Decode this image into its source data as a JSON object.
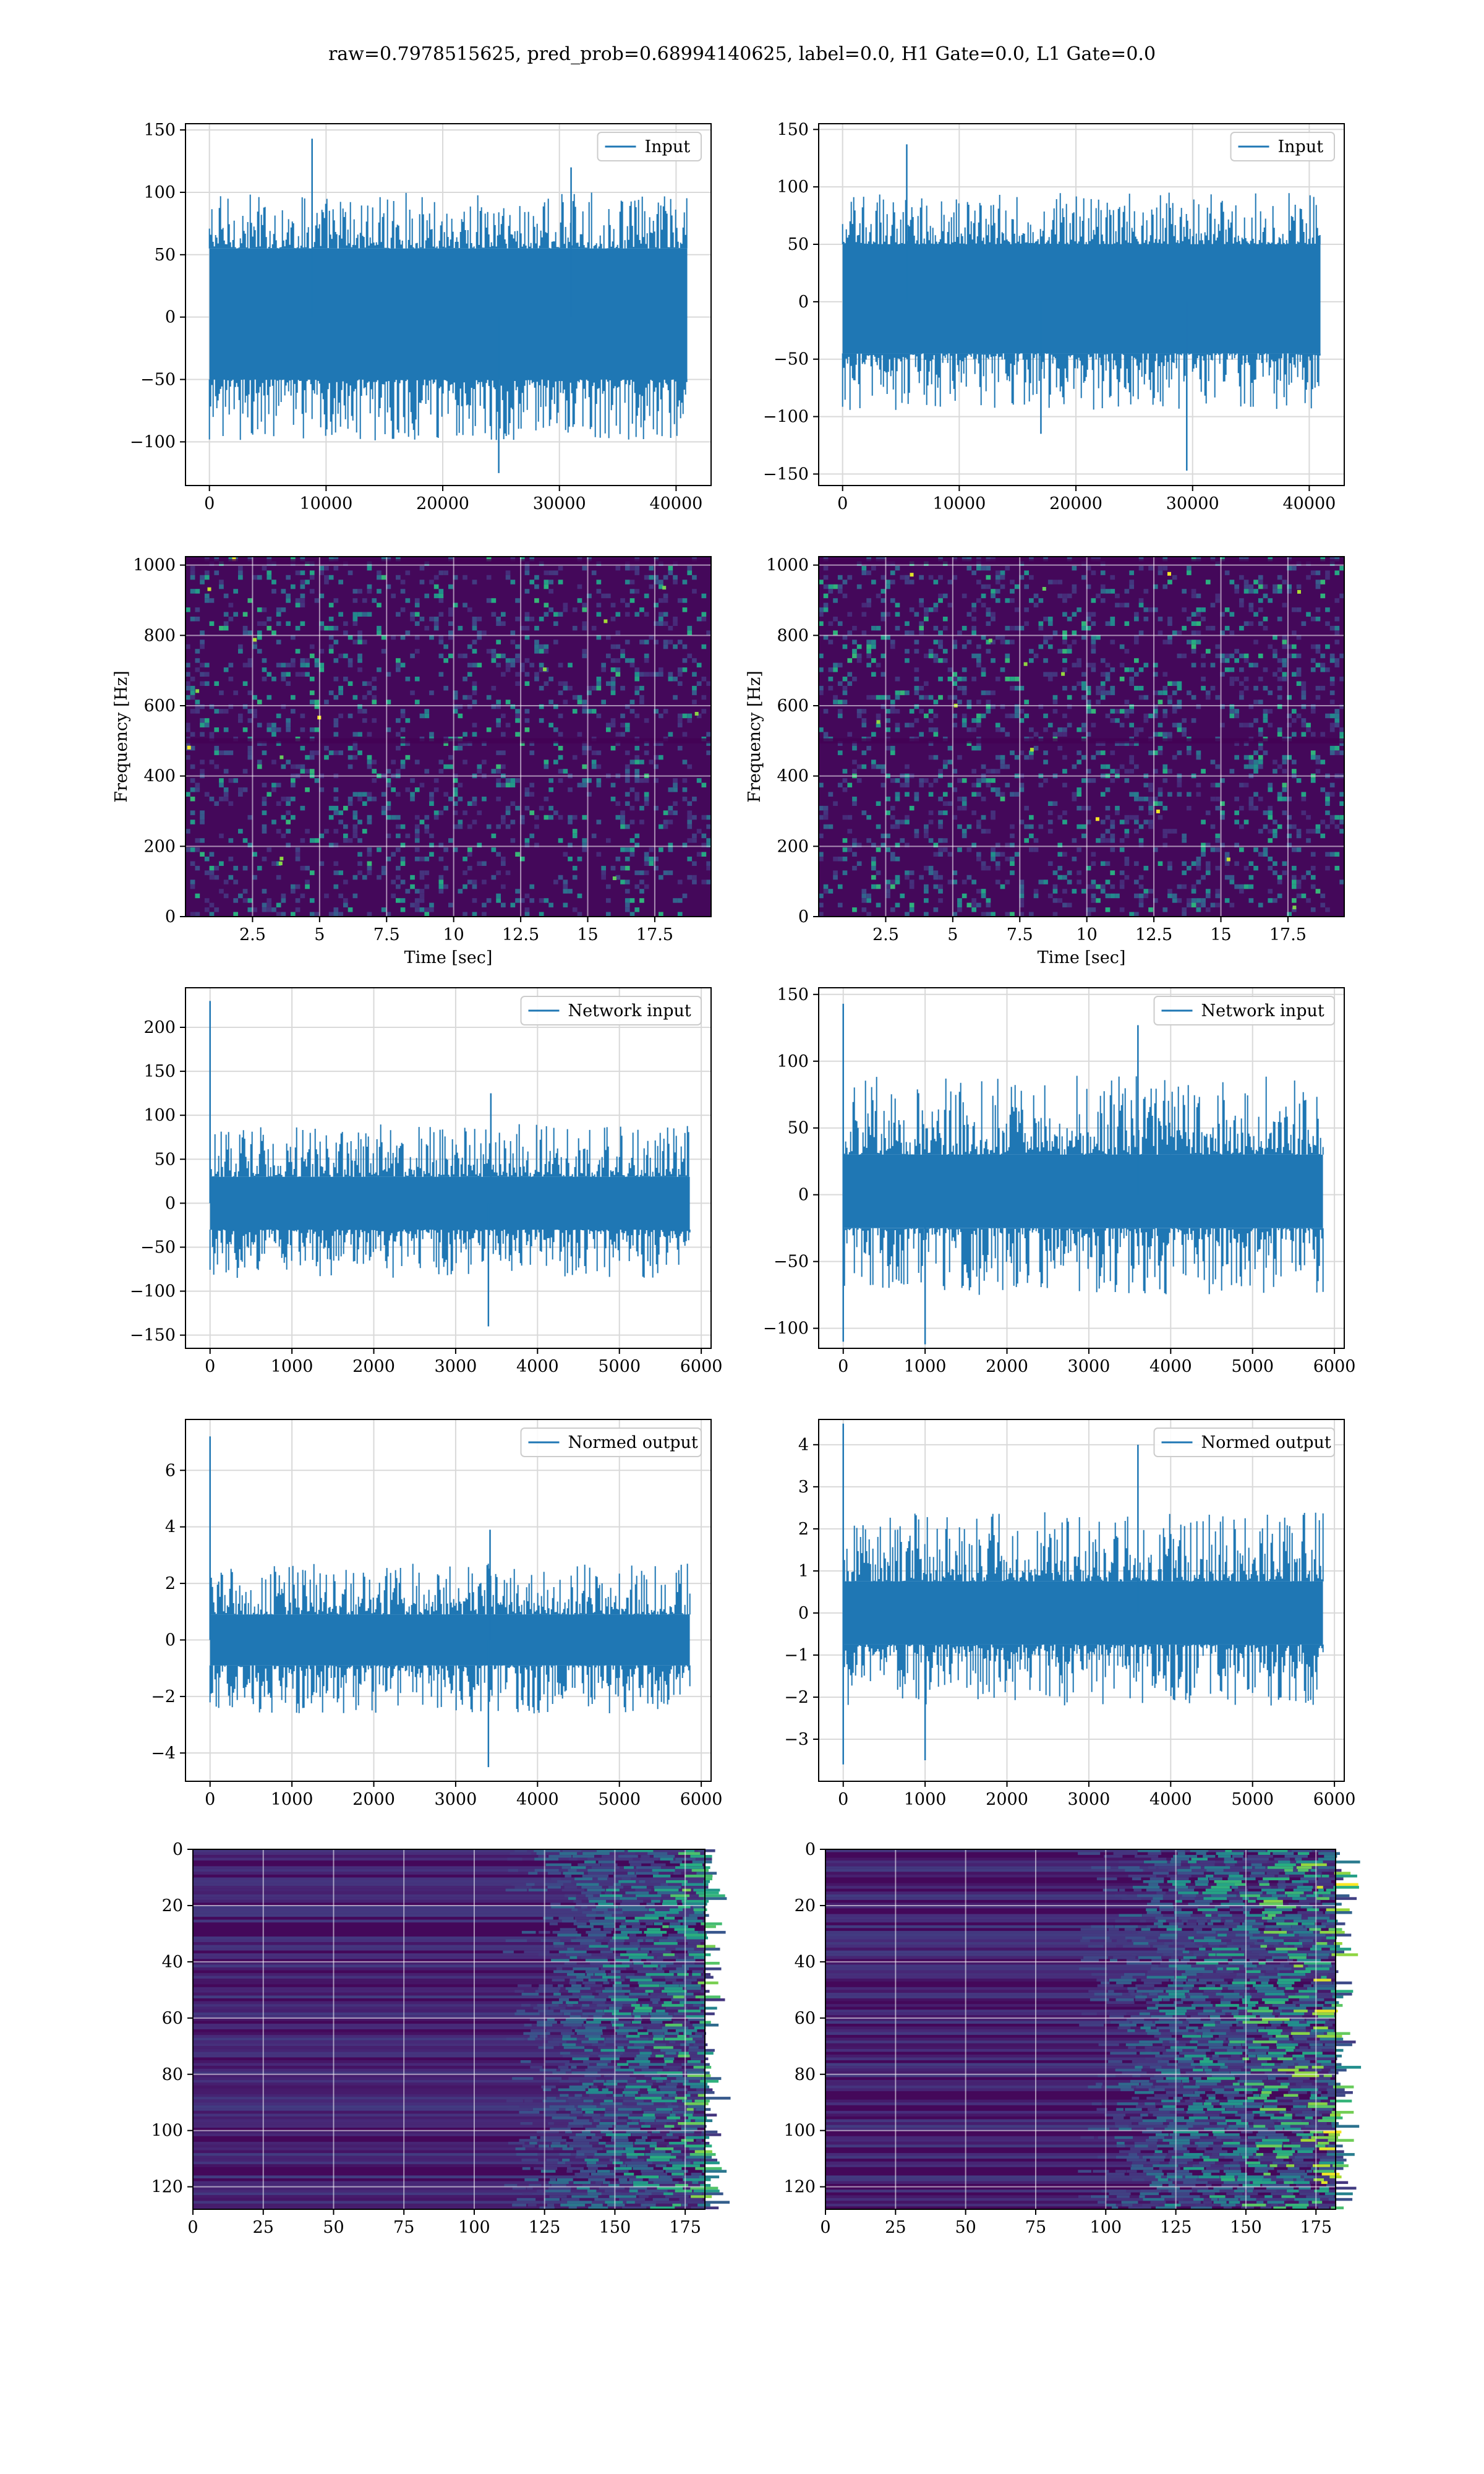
{
  "figure": {
    "title": "raw=0.7978515625, pred_prob=0.68994140625, label=0.0, H1 Gate=0.0, L1 Gate=0.0",
    "line_color": "#1f77b4"
  },
  "chart_data": [
    {
      "id": "input-h1",
      "type": "line",
      "legend": "Input",
      "xlabel": "",
      "ylabel": "",
      "xlim": [
        -2050,
        43000
      ],
      "ylim": [
        -135,
        155
      ],
      "xticks": [
        0,
        10000,
        20000,
        30000,
        40000
      ],
      "yticks": [
        -100,
        -50,
        0,
        50,
        100,
        150
      ],
      "grid": true,
      "legend_position": "top-right",
      "signal": {
        "x_start": 0,
        "x_end": 40960,
        "band": [
          -50,
          55
        ],
        "envelope": [
          -100,
          100
        ],
        "peaks": [
          {
            "x": 8800,
            "y": 143
          },
          {
            "x": 31000,
            "y": 120
          },
          {
            "x": 24800,
            "y": -125
          }
        ]
      }
    },
    {
      "id": "input-l1",
      "type": "line",
      "legend": "Input",
      "xlabel": "",
      "ylabel": "",
      "xlim": [
        -2050,
        43000
      ],
      "ylim": [
        -160,
        155
      ],
      "xticks": [
        0,
        10000,
        20000,
        30000,
        40000
      ],
      "yticks": [
        -150,
        -100,
        -50,
        0,
        50,
        100,
        150
      ],
      "grid": true,
      "legend_position": "top-right",
      "signal": {
        "x_start": 0,
        "x_end": 40960,
        "band": [
          -45,
          50
        ],
        "envelope": [
          -95,
          95
        ],
        "peaks": [
          {
            "x": 5500,
            "y": 137
          },
          {
            "x": 29500,
            "y": -147
          },
          {
            "x": 17000,
            "y": -115
          }
        ]
      }
    },
    {
      "id": "spec-h1",
      "type": "heatmap",
      "colormap": "viridis",
      "xlabel": "Time [sec]",
      "ylabel": "Frequency [Hz]",
      "xlim": [
        0,
        19.6
      ],
      "ylim": [
        0,
        1024
      ],
      "xticks": [
        2.5,
        5.0,
        7.5,
        10.0,
        12.5,
        15.0,
        17.5
      ],
      "yticks": [
        0,
        200,
        400,
        600,
        800,
        1000
      ],
      "grid": true,
      "dark_rows": [
        500,
        1010
      ],
      "density": 0.18
    },
    {
      "id": "spec-l1",
      "type": "heatmap",
      "colormap": "viridis",
      "xlabel": "Time [sec]",
      "ylabel": "Frequency [Hz]",
      "xlim": [
        0,
        19.6
      ],
      "ylim": [
        0,
        1024
      ],
      "xticks": [
        2.5,
        5.0,
        7.5,
        10.0,
        12.5,
        15.0,
        17.5
      ],
      "yticks": [
        0,
        200,
        400,
        600,
        800,
        1000
      ],
      "grid": true,
      "dark_rows": [
        500,
        1010
      ],
      "density": 0.2
    },
    {
      "id": "net-h1",
      "type": "line",
      "legend": "Network input",
      "xlabel": "",
      "ylabel": "",
      "xlim": [
        -300,
        6120
      ],
      "ylim": [
        -165,
        245
      ],
      "xticks": [
        0,
        1000,
        2000,
        3000,
        4000,
        5000,
        6000
      ],
      "yticks": [
        -150,
        -100,
        -50,
        0,
        50,
        100,
        150,
        200
      ],
      "grid": true,
      "legend_position": "top-right",
      "signal": {
        "x_start": 0,
        "x_end": 5860,
        "band": [
          -30,
          30
        ],
        "envelope": [
          -85,
          90
        ],
        "peaks": [
          {
            "x": 0,
            "y": 230
          },
          {
            "x": 3400,
            "y": -140
          },
          {
            "x": 3430,
            "y": 125
          }
        ]
      }
    },
    {
      "id": "net-l1",
      "type": "line",
      "legend": "Network input",
      "xlabel": "",
      "ylabel": "",
      "xlim": [
        -300,
        6120
      ],
      "ylim": [
        -115,
        155
      ],
      "xticks": [
        0,
        1000,
        2000,
        3000,
        4000,
        5000,
        6000
      ],
      "yticks": [
        -100,
        -50,
        0,
        50,
        100,
        150
      ],
      "grid": true,
      "legend_position": "top-right",
      "signal": {
        "x_start": 0,
        "x_end": 5860,
        "band": [
          -25,
          30
        ],
        "envelope": [
          -75,
          90
        ],
        "peaks": [
          {
            "x": 0,
            "y": 143
          },
          {
            "x": 3600,
            "y": 127
          },
          {
            "x": 0,
            "y": -110
          },
          {
            "x": 1000,
            "y": -112
          }
        ]
      }
    },
    {
      "id": "norm-h1",
      "type": "line",
      "legend": "Normed output",
      "xlabel": "",
      "ylabel": "",
      "xlim": [
        -300,
        6120
      ],
      "ylim": [
        -5.0,
        7.8
      ],
      "xticks": [
        0,
        1000,
        2000,
        3000,
        4000,
        5000,
        6000
      ],
      "yticks": [
        -4,
        -2,
        0,
        2,
        4,
        6
      ],
      "grid": true,
      "legend_position": "top-right",
      "signal": {
        "x_start": 0,
        "x_end": 5860,
        "band": [
          -0.9,
          0.9
        ],
        "envelope": [
          -2.6,
          2.7
        ],
        "peaks": [
          {
            "x": 0,
            "y": 7.2
          },
          {
            "x": 3400,
            "y": -4.5
          },
          {
            "x": 3420,
            "y": 3.9
          }
        ]
      }
    },
    {
      "id": "norm-l1",
      "type": "line",
      "legend": "Normed output",
      "xlabel": "",
      "ylabel": "",
      "xlim": [
        -300,
        6120
      ],
      "ylim": [
        -4.0,
        4.6
      ],
      "xticks": [
        0,
        1000,
        2000,
        3000,
        4000,
        5000,
        6000
      ],
      "yticks": [
        -3,
        -2,
        -1,
        0,
        1,
        2,
        3,
        4
      ],
      "grid": true,
      "legend_position": "top-right",
      "signal": {
        "x_start": 0,
        "x_end": 5860,
        "band": [
          -0.75,
          0.75
        ],
        "envelope": [
          -2.2,
          2.4
        ],
        "peaks": [
          {
            "x": 0,
            "y": 4.5
          },
          {
            "x": 3600,
            "y": 4.0
          },
          {
            "x": 0,
            "y": -3.6
          },
          {
            "x": 1000,
            "y": -3.5
          }
        ]
      }
    },
    {
      "id": "feat-h1",
      "type": "heatmap",
      "colormap": "viridis",
      "xlabel": "",
      "ylabel": "",
      "xlim": [
        0,
        182
      ],
      "ylim": [
        128,
        0
      ],
      "xticks": [
        0,
        25,
        50,
        75,
        100,
        125,
        150,
        175
      ],
      "yticks": [
        0,
        20,
        40,
        60,
        80,
        100,
        120
      ],
      "grid": true,
      "bright_from": 140
    },
    {
      "id": "feat-l1",
      "type": "heatmap",
      "colormap": "viridis",
      "xlabel": "",
      "ylabel": "",
      "xlim": [
        0,
        182
      ],
      "ylim": [
        128,
        0
      ],
      "xticks": [
        0,
        25,
        50,
        75,
        100,
        125,
        150,
        175
      ],
      "yticks": [
        0,
        20,
        40,
        60,
        80,
        100,
        120
      ],
      "grid": true,
      "bright_from": 120
    }
  ]
}
